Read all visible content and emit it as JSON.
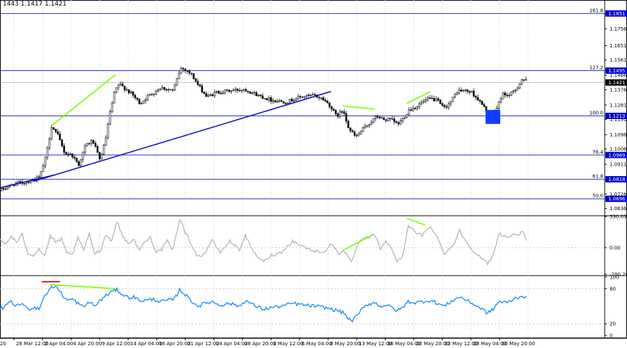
{
  "header": {
    "ohlc_text": "1443 1.1417 1.1421"
  },
  "colors": {
    "candle": "#000000",
    "fib_line": "#2b2bd6",
    "trend_line": "#1010c8",
    "divergence_line": "#7cfc00",
    "cci_line": "#b4b4b4",
    "stoch_line": "#1e90ff",
    "red_marker": "#e00000",
    "box": "#1040ff",
    "price_badge": "#0000cc",
    "grid_dot": "#c8c8c8"
  },
  "chart_data": [
    {
      "type": "candlestick",
      "panel": "price",
      "ylim": [
        1.0595,
        1.1935
      ],
      "x_labels": [
        "28 Mar 12:00",
        "2 Apr 04:00",
        "4 Apr 20:00",
        "9 Apr 12:00",
        "14 Apr 04:00",
        "16 Apr 20:00",
        "21 Apr 12:00",
        "24 Apr 04:00",
        "28 Apr 20:00",
        "1 May 12:00",
        "6 May 04:00",
        "8 May 20:00",
        "13 May 12:00",
        "16 May 04:00",
        "20 May 20:00",
        "23 May 12:00",
        "28 May 04:00",
        "30 May 20:00"
      ],
      "y_ticks": [
        "1.1851",
        "1.1756",
        "1.1651",
        "1.1561",
        "1.1466",
        "1.1376",
        "1.1281",
        "1.1191",
        "1.1096",
        "1.1006",
        "1.0911",
        "1.0726",
        "1.0636"
      ],
      "current_price": "1.1421",
      "fib_levels": [
        {
          "label": "161.8",
          "price": "1.1851",
          "value": 1.1851
        },
        {
          "label": "127.2",
          "price": "1.1495",
          "value": 1.1495
        },
        {
          "label": "100.0",
          "price": "1.1213",
          "value": 1.1213
        },
        {
          "label": "76.4",
          "price": "1.0969",
          "value": 1.0969
        },
        {
          "label": "61.8",
          "price": "1.0818",
          "value": 1.0818
        },
        {
          "label": "50.0",
          "price": "1.0696",
          "value": 1.0696
        }
      ],
      "anchors": [
        [
          0,
          1.075
        ],
        [
          20,
          1.079
        ],
        [
          36,
          1.08
        ],
        [
          56,
          1.083
        ],
        [
          65,
          1.096
        ],
        [
          73,
          1.115
        ],
        [
          82,
          1.109
        ],
        [
          92,
          1.098
        ],
        [
          102,
          1.097
        ],
        [
          112,
          1.091
        ],
        [
          122,
          1.103
        ],
        [
          132,
          1.106
        ],
        [
          142,
          1.094
        ],
        [
          150,
          1.105
        ],
        [
          156,
          1.121
        ],
        [
          164,
          1.137
        ],
        [
          170,
          1.141
        ],
        [
          180,
          1.138
        ],
        [
          190,
          1.134
        ],
        [
          200,
          1.129
        ],
        [
          210,
          1.133
        ],
        [
          220,
          1.136
        ],
        [
          230,
          1.139
        ],
        [
          248,
          1.137
        ],
        [
          258,
          1.151
        ],
        [
          266,
          1.15
        ],
        [
          274,
          1.147
        ],
        [
          284,
          1.14
        ],
        [
          296,
          1.133
        ],
        [
          310,
          1.136
        ],
        [
          330,
          1.137
        ],
        [
          350,
          1.138
        ],
        [
          370,
          1.134
        ],
        [
          390,
          1.131
        ],
        [
          410,
          1.13
        ],
        [
          430,
          1.133
        ],
        [
          450,
          1.134
        ],
        [
          462,
          1.132
        ],
        [
          472,
          1.128
        ],
        [
          482,
          1.121
        ],
        [
          492,
          1.125
        ],
        [
          500,
          1.113
        ],
        [
          510,
          1.108
        ],
        [
          520,
          1.113
        ],
        [
          530,
          1.117
        ],
        [
          540,
          1.121
        ],
        [
          550,
          1.119
        ],
        [
          560,
          1.119
        ],
        [
          570,
          1.116
        ],
        [
          578,
          1.12
        ],
        [
          586,
          1.125
        ],
        [
          596,
          1.127
        ],
        [
          606,
          1.13
        ],
        [
          616,
          1.132
        ],
        [
          626,
          1.131
        ],
        [
          636,
          1.126
        ],
        [
          646,
          1.13
        ],
        [
          656,
          1.137
        ],
        [
          666,
          1.137
        ],
        [
          676,
          1.136
        ],
        [
          686,
          1.131
        ],
        [
          696,
          1.125
        ],
        [
          704,
          1.121
        ],
        [
          712,
          1.126
        ],
        [
          720,
          1.135
        ],
        [
          730,
          1.134
        ],
        [
          740,
          1.138
        ],
        [
          748,
          1.144
        ],
        [
          756,
          1.143
        ]
      ],
      "trendlines": [
        {
          "from": [
            0,
            1.0765
          ],
          "to": [
            78,
            1.0845
          ]
        },
        {
          "from": [
            48,
            1.0805
          ],
          "to": [
            475,
            1.1365
          ]
        }
      ],
      "divergence_lines": [
        {
          "from": [
            74,
            1.1152
          ],
          "to": [
            166,
            1.147
          ]
        },
        {
          "from": [
            492,
            1.1275
          ],
          "to": [
            538,
            1.1255
          ]
        },
        {
          "from": [
            584,
            1.129
          ],
          "to": [
            618,
            1.1365
          ]
        }
      ],
      "box": {
        "x": [
          697,
          718
        ],
        "y": [
          1.1163,
          1.125
        ]
      }
    },
    {
      "type": "line",
      "panel": "cci",
      "y_ticks": [
        "330.0361",
        "0.00",
        "-280.2846"
      ],
      "ylim": [
        -280.2846,
        330.0361
      ],
      "anchors": [
        [
          0,
          80
        ],
        [
          8,
          40
        ],
        [
          16,
          120
        ],
        [
          24,
          55
        ],
        [
          32,
          140
        ],
        [
          40,
          -60
        ],
        [
          48,
          -80
        ],
        [
          56,
          -10
        ],
        [
          64,
          -90
        ],
        [
          72,
          120
        ],
        [
          80,
          60
        ],
        [
          88,
          90
        ],
        [
          96,
          -60
        ],
        [
          104,
          -70
        ],
        [
          112,
          100
        ],
        [
          120,
          -20
        ],
        [
          128,
          140
        ],
        [
          136,
          -60
        ],
        [
          144,
          -30
        ],
        [
          152,
          140
        ],
        [
          160,
          70
        ],
        [
          168,
          280
        ],
        [
          176,
          120
        ],
        [
          184,
          50
        ],
        [
          192,
          80
        ],
        [
          200,
          -20
        ],
        [
          208,
          60
        ],
        [
          216,
          110
        ],
        [
          224,
          -40
        ],
        [
          232,
          -20
        ],
        [
          240,
          70
        ],
        [
          248,
          -30
        ],
        [
          258,
          310
        ],
        [
          266,
          160
        ],
        [
          274,
          50
        ],
        [
          284,
          -100
        ],
        [
          294,
          -60
        ],
        [
          304,
          80
        ],
        [
          316,
          -50
        ],
        [
          330,
          70
        ],
        [
          344,
          -20
        ],
        [
          352,
          130
        ],
        [
          364,
          -50
        ],
        [
          378,
          -150
        ],
        [
          390,
          -80
        ],
        [
          404,
          -50
        ],
        [
          420,
          70
        ],
        [
          436,
          10
        ],
        [
          452,
          -40
        ],
        [
          466,
          -40
        ],
        [
          476,
          40
        ],
        [
          486,
          -60
        ],
        [
          494,
          -30
        ],
        [
          504,
          -160
        ],
        [
          514,
          40
        ],
        [
          522,
          100
        ],
        [
          530,
          110
        ],
        [
          538,
          140
        ],
        [
          546,
          -10
        ],
        [
          554,
          60
        ],
        [
          562,
          0
        ],
        [
          570,
          -150
        ],
        [
          578,
          -90
        ],
        [
          586,
          240
        ],
        [
          596,
          160
        ],
        [
          606,
          130
        ],
        [
          618,
          230
        ],
        [
          628,
          100
        ],
        [
          638,
          -60
        ],
        [
          650,
          20
        ],
        [
          660,
          180
        ],
        [
          670,
          50
        ],
        [
          682,
          -50
        ],
        [
          692,
          -120
        ],
        [
          700,
          -170
        ],
        [
          708,
          -80
        ],
        [
          716,
          150
        ],
        [
          728,
          110
        ],
        [
          740,
          140
        ],
        [
          750,
          160
        ],
        [
          756,
          80
        ]
      ],
      "divergence_lines": [
        {
          "from": [
            492,
            -30
          ],
          "to": [
            536,
            140
          ]
        },
        {
          "from": [
            584,
            310
          ],
          "to": [
            610,
            240
          ]
        }
      ]
    },
    {
      "type": "line",
      "panel": "stochastic",
      "y_ticks": [
        "100",
        "80",
        "20",
        "0"
      ],
      "ylim": [
        0,
        100
      ],
      "guides": [
        80,
        20
      ],
      "anchors": [
        [
          0,
          45
        ],
        [
          8,
          50
        ],
        [
          16,
          57
        ],
        [
          24,
          50
        ],
        [
          32,
          55
        ],
        [
          40,
          45
        ],
        [
          48,
          48
        ],
        [
          56,
          46
        ],
        [
          64,
          68
        ],
        [
          72,
          80
        ],
        [
          80,
          85
        ],
        [
          88,
          72
        ],
        [
          96,
          60
        ],
        [
          104,
          62
        ],
        [
          112,
          55
        ],
        [
          120,
          48
        ],
        [
          128,
          58
        ],
        [
          136,
          50
        ],
        [
          144,
          60
        ],
        [
          152,
          68
        ],
        [
          160,
          75
        ],
        [
          168,
          78
        ],
        [
          176,
          70
        ],
        [
          184,
          65
        ],
        [
          192,
          66
        ],
        [
          200,
          60
        ],
        [
          210,
          60
        ],
        [
          220,
          62
        ],
        [
          230,
          58
        ],
        [
          240,
          60
        ],
        [
          250,
          62
        ],
        [
          258,
          78
        ],
        [
          266,
          70
        ],
        [
          274,
          60
        ],
        [
          284,
          50
        ],
        [
          294,
          55
        ],
        [
          304,
          58
        ],
        [
          316,
          52
        ],
        [
          330,
          55
        ],
        [
          344,
          50
        ],
        [
          352,
          60
        ],
        [
          364,
          52
        ],
        [
          378,
          45
        ],
        [
          390,
          48
        ],
        [
          404,
          50
        ],
        [
          420,
          55
        ],
        [
          436,
          52
        ],
        [
          452,
          50
        ],
        [
          466,
          48
        ],
        [
          476,
          45
        ],
        [
          486,
          42
        ],
        [
          494,
          38
        ],
        [
          504,
          24
        ],
        [
          514,
          35
        ],
        [
          522,
          50
        ],
        [
          530,
          54
        ],
        [
          538,
          56
        ],
        [
          546,
          50
        ],
        [
          554,
          52
        ],
        [
          562,
          48
        ],
        [
          570,
          42
        ],
        [
          578,
          48
        ],
        [
          586,
          58
        ],
        [
          596,
          56
        ],
        [
          606,
          58
        ],
        [
          618,
          60
        ],
        [
          628,
          55
        ],
        [
          638,
          50
        ],
        [
          650,
          60
        ],
        [
          660,
          66
        ],
        [
          670,
          60
        ],
        [
          682,
          52
        ],
        [
          692,
          45
        ],
        [
          700,
          38
        ],
        [
          708,
          45
        ],
        [
          716,
          58
        ],
        [
          728,
          56
        ],
        [
          740,
          64
        ],
        [
          750,
          68
        ],
        [
          756,
          64
        ]
      ],
      "divergence_lines": [
        {
          "from": [
            72,
            87
          ],
          "to": [
            166,
            80
          ]
        }
      ],
      "red_marker": {
        "x": [
          60,
          86
        ],
        "value": 92
      }
    }
  ]
}
